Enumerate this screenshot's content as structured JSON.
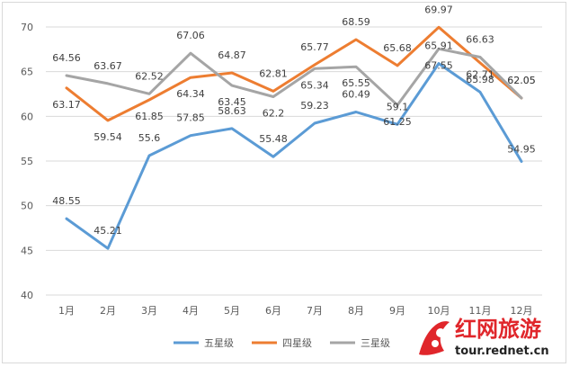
{
  "chart_data": {
    "type": "line",
    "categories": [
      "1月",
      "2月",
      "3月",
      "4月",
      "5月",
      "6月",
      "7月",
      "8月",
      "9月",
      "10月",
      "11月",
      "12月"
    ],
    "ylim": [
      40,
      70
    ],
    "yticks": [
      40,
      45,
      50,
      55,
      60,
      65,
      70
    ],
    "grid": true,
    "legend_position": "bottom",
    "series": [
      {
        "name": "五星级",
        "color": "#5b9bd5",
        "values": [
          48.55,
          45.21,
          55.6,
          57.85,
          58.63,
          55.48,
          59.23,
          60.49,
          59.1,
          65.91,
          62.71,
          54.95
        ]
      },
      {
        "name": "四星级",
        "color": "#ed7d31",
        "values": [
          63.17,
          59.54,
          61.85,
          64.34,
          64.87,
          62.81,
          65.77,
          68.59,
          65.68,
          69.97,
          65.98,
          62.05
        ]
      },
      {
        "name": "三星级",
        "color": "#a5a5a5",
        "values": [
          64.56,
          63.67,
          62.52,
          67.06,
          63.45,
          62.2,
          65.34,
          65.55,
          61.25,
          67.55,
          66.63,
          62.05
        ]
      }
    ]
  },
  "watermark": {
    "brand": "红网旅游",
    "url": "tour.rednet.cn"
  }
}
